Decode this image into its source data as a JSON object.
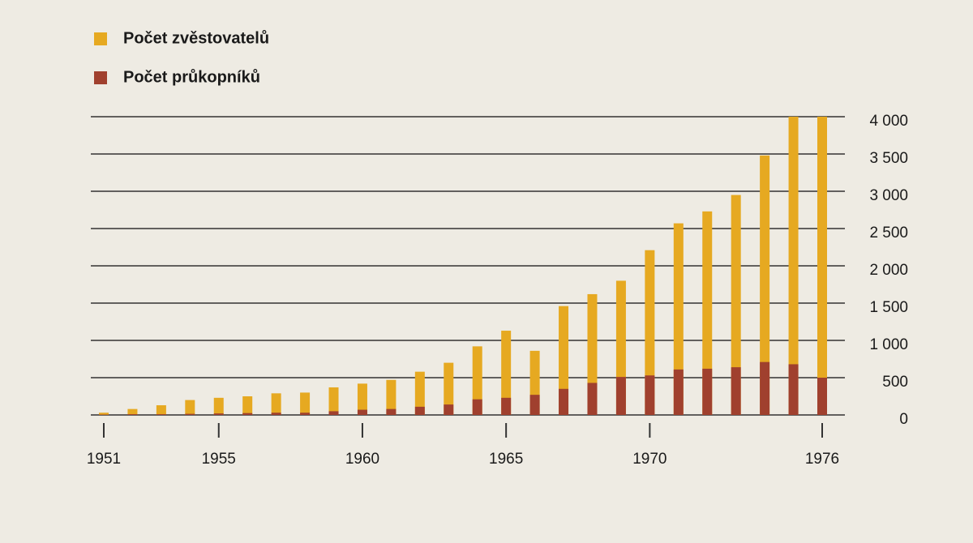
{
  "chart_data": {
    "type": "bar",
    "categories": [
      "1951",
      null,
      null,
      null,
      "1955",
      null,
      null,
      null,
      null,
      "1960",
      null,
      null,
      null,
      null,
      "1965",
      null,
      null,
      null,
      null,
      "1970",
      null,
      null,
      null,
      null,
      null,
      "1976"
    ],
    "series": [
      {
        "name": "Počet zvěstovatelů",
        "color": "#e6a921",
        "values": [
          30,
          80,
          130,
          200,
          230,
          250,
          290,
          300,
          370,
          420,
          470,
          580,
          700,
          920,
          1130,
          860,
          1460,
          1620,
          1800,
          2210,
          2570,
          2730,
          2950,
          3480,
          4000,
          4000
        ]
      },
      {
        "name": "Počet průkopníků",
        "color": "#a0402e",
        "values": [
          5,
          10,
          10,
          15,
          20,
          25,
          30,
          30,
          50,
          70,
          80,
          110,
          140,
          210,
          230,
          270,
          350,
          430,
          510,
          530,
          610,
          620,
          640,
          710,
          680,
          500
        ]
      }
    ],
    "ylim": [
      0,
      4000
    ],
    "yticks": [
      0,
      500,
      {
        "value": 1000,
        "label": "1 000"
      },
      {
        "value": 1500,
        "label": "1 500"
      },
      {
        "value": 2000,
        "label": "2 000"
      },
      {
        "value": 2500,
        "label": "2 500"
      },
      {
        "value": 3000,
        "label": "3 000"
      },
      {
        "value": 3500,
        "label": "3 500"
      },
      {
        "value": 4000,
        "label": "4 000"
      }
    ],
    "grid": true
  }
}
